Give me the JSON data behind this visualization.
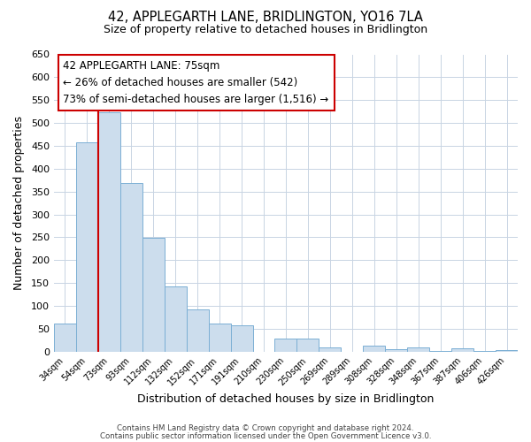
{
  "title": "42, APPLEGARTH LANE, BRIDLINGTON, YO16 7LA",
  "subtitle": "Size of property relative to detached houses in Bridlington",
  "xlabel": "Distribution of detached houses by size in Bridlington",
  "ylabel": "Number of detached properties",
  "bar_labels": [
    "34sqm",
    "54sqm",
    "73sqm",
    "93sqm",
    "112sqm",
    "132sqm",
    "152sqm",
    "171sqm",
    "191sqm",
    "210sqm",
    "230sqm",
    "250sqm",
    "269sqm",
    "289sqm",
    "308sqm",
    "328sqm",
    "348sqm",
    "367sqm",
    "387sqm",
    "406sqm",
    "426sqm"
  ],
  "bar_values": [
    62,
    457,
    524,
    369,
    249,
    142,
    93,
    62,
    57,
    0,
    28,
    28,
    10,
    0,
    13,
    6,
    10,
    2,
    7,
    2,
    3
  ],
  "bar_color": "#ccdded",
  "bar_edge_color": "#7bafd4",
  "ylim": [
    0,
    650
  ],
  "yticks": [
    0,
    50,
    100,
    150,
    200,
    250,
    300,
    350,
    400,
    450,
    500,
    550,
    600,
    650
  ],
  "vline_index": 2,
  "vline_color": "#cc0000",
  "annotation_title": "42 APPLEGARTH LANE: 75sqm",
  "annotation_line1": "← 26% of detached houses are smaller (542)",
  "annotation_line2": "73% of semi-detached houses are larger (1,516) →",
  "annotation_box_color": "#ffffff",
  "annotation_box_edge": "#cc0000",
  "footer_line1": "Contains HM Land Registry data © Crown copyright and database right 2024.",
  "footer_line2": "Contains public sector information licensed under the Open Government Licence v3.0.",
  "bg_color": "#ffffff",
  "grid_color": "#c8d4e3"
}
